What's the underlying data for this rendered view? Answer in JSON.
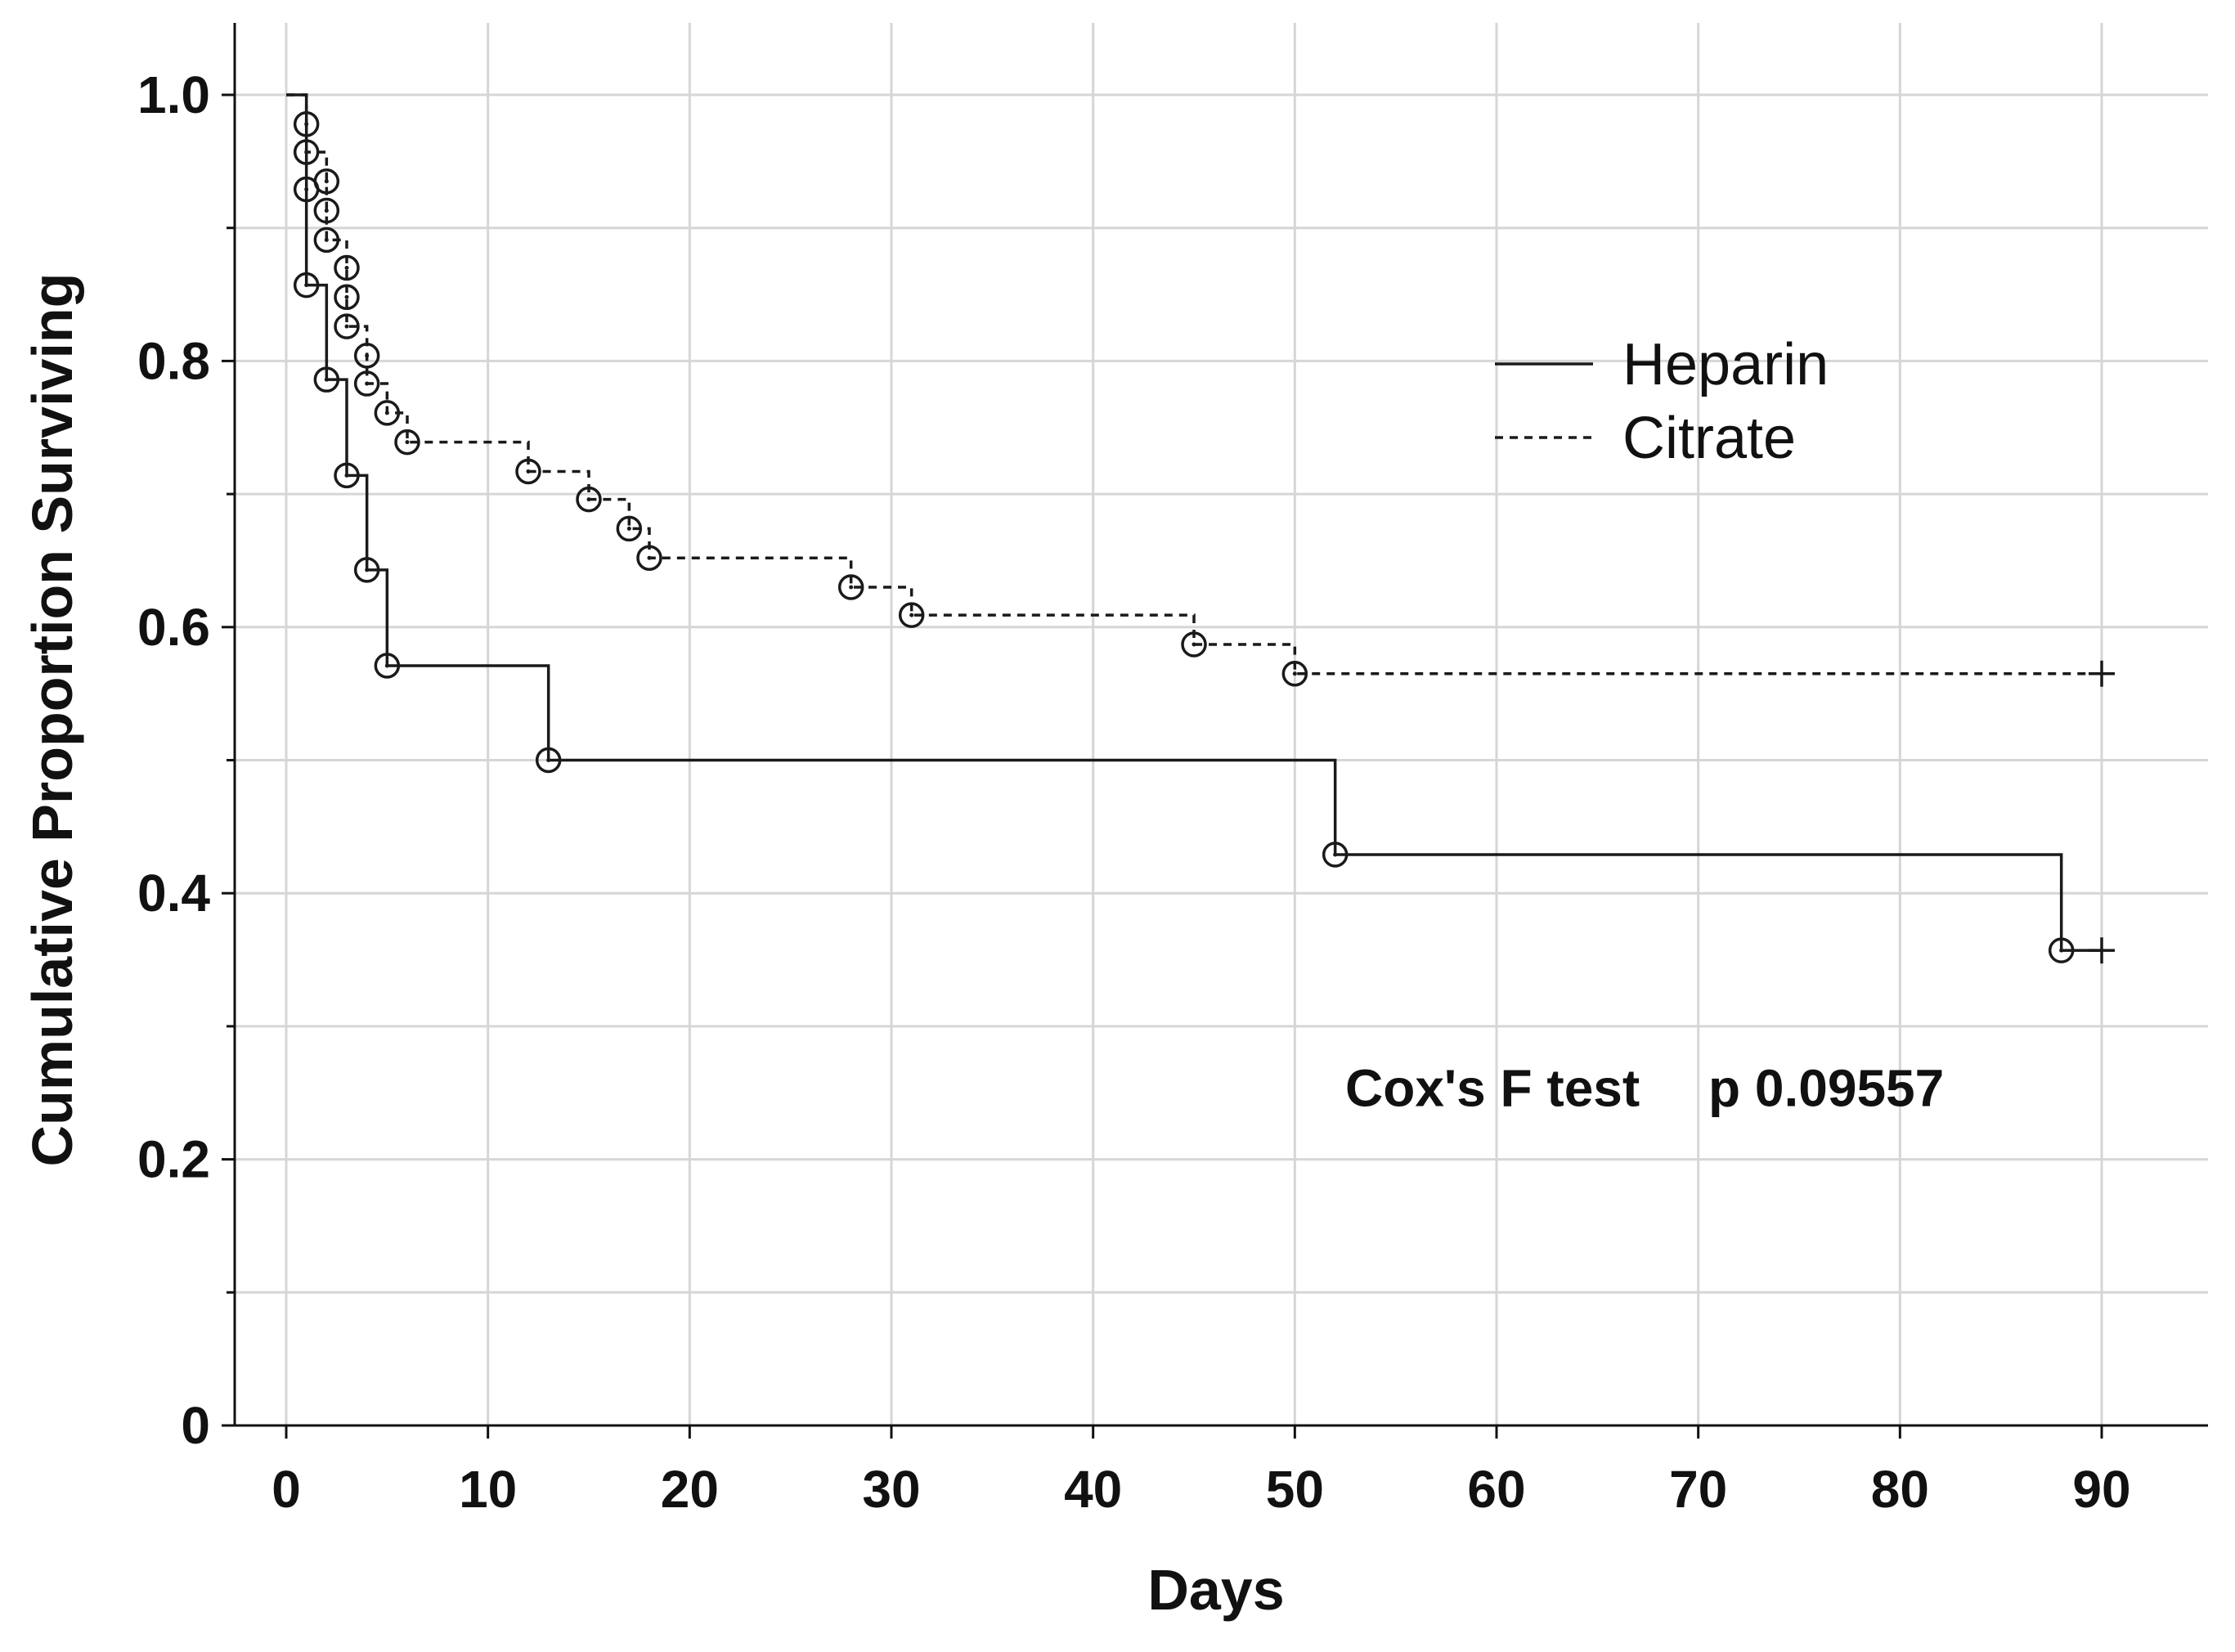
{
  "chart_data": {
    "type": "line",
    "subtype": "kaplan-meier step",
    "title": "",
    "xlabel": "Days",
    "ylabel": "Cumulative Proportion Surviving",
    "xlim": [
      -2.5,
      95
    ],
    "ylim": [
      0,
      1.05
    ],
    "x_ticks": [
      0,
      10,
      20,
      30,
      40,
      50,
      60,
      70,
      80,
      90
    ],
    "x_tick_labels": [
      "0",
      "10",
      "20",
      "30",
      "40",
      "50",
      "60",
      "70",
      "80",
      "90"
    ],
    "y_ticks": [
      0,
      0.2,
      0.4,
      0.6,
      0.8,
      1.0
    ],
    "y_tick_labels": [
      "0",
      "0.2",
      "0.4",
      "0.6",
      "0.8",
      "1.0"
    ],
    "y_minor_ticks": [
      0.1,
      0.3,
      0.5,
      0.7,
      0.9
    ],
    "grid": true,
    "legend_position": "upper-right",
    "series": [
      {
        "name": "Heparin",
        "line_style": "solid",
        "events": [
          [
            1,
            0.929
          ],
          [
            1,
            0.857
          ],
          [
            2,
            0.786
          ],
          [
            3,
            0.714
          ],
          [
            4,
            0.643
          ],
          [
            5,
            0.571
          ],
          [
            13,
            0.5
          ],
          [
            52,
            0.429
          ],
          [
            88,
            0.357
          ]
        ],
        "censored": [
          [
            90,
            0.357
          ]
        ]
      },
      {
        "name": "Citrate",
        "line_style": "dashed",
        "events": [
          [
            1,
            0.978
          ],
          [
            1,
            0.957
          ],
          [
            2,
            0.935
          ],
          [
            2,
            0.913
          ],
          [
            2,
            0.891
          ],
          [
            3,
            0.87
          ],
          [
            3,
            0.848
          ],
          [
            3,
            0.826
          ],
          [
            4,
            0.804
          ],
          [
            4,
            0.783
          ],
          [
            5,
            0.761
          ],
          [
            6,
            0.739
          ],
          [
            12,
            0.717
          ],
          [
            15,
            0.696
          ],
          [
            17,
            0.674
          ],
          [
            18,
            0.652
          ],
          [
            28,
            0.63
          ],
          [
            31,
            0.609
          ],
          [
            45,
            0.587
          ],
          [
            50,
            0.565
          ]
        ],
        "censored": [
          [
            90,
            0.565
          ]
        ]
      }
    ],
    "annotations": [
      {
        "text": "Cox's F test",
        "x": 52.5,
        "y": 0.24
      },
      {
        "text": "p 0.09557",
        "x": 70.5,
        "y": 0.24
      }
    ]
  }
}
